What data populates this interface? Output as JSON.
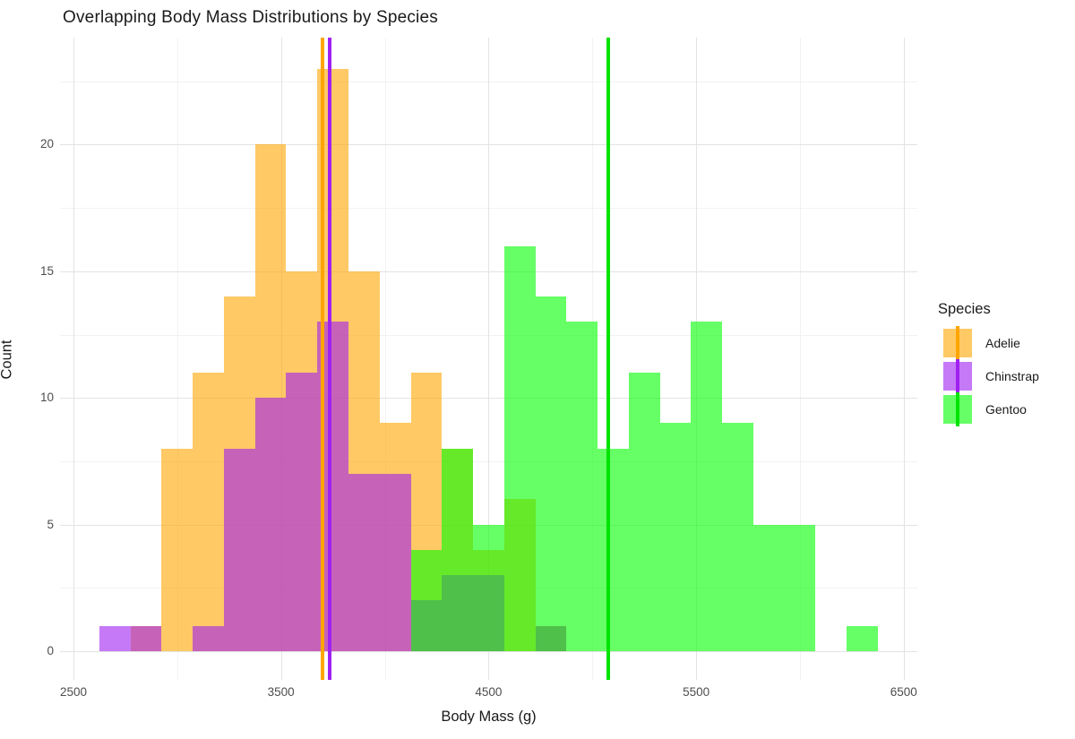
{
  "title": "Overlapping Body Mass Distributions by Species",
  "axes": {
    "x": {
      "label": "Body Mass (g)"
    },
    "y": {
      "label": "Count"
    }
  },
  "legend": {
    "title": "Species",
    "items": [
      {
        "label": "Adelie"
      },
      {
        "label": "Chinstrap"
      },
      {
        "label": "Gentoo"
      }
    ]
  },
  "chart_data": {
    "type": "histogram-overlaid",
    "title": "Overlapping Body Mass Distributions by Species",
    "xlabel": "Body Mass (g)",
    "ylabel": "Count",
    "bin_width": 150,
    "bin_centers": [
      2700,
      2850,
      3000,
      3150,
      3300,
      3450,
      3600,
      3750,
      3900,
      4050,
      4200,
      4350,
      4500,
      4650,
      4800,
      4950,
      5100,
      5250,
      5400,
      5550,
      5700,
      5850,
      6000,
      6150,
      6300
    ],
    "x_major_ticks": [
      2500,
      3500,
      4500,
      5500,
      6500
    ],
    "x_minor_gridlines": [
      3000,
      4000,
      5000,
      6000
    ],
    "y_major_ticks": [
      0,
      5,
      10,
      15,
      20
    ],
    "y_minor_gridlines": [
      2.5,
      7.5,
      12.5,
      17.5,
      22.5
    ],
    "xlim": [
      2435,
      6566
    ],
    "ylim": [
      -1.15,
      24.2
    ],
    "grid": "on",
    "legend_position": "right",
    "fill_alpha": 0.6,
    "series": [
      {
        "name": "Adelie",
        "fill": "rgba(255,165,0,0.6)",
        "line_color": "#FFA500",
        "mean": 3700.7,
        "counts": [
          0,
          1,
          8,
          11,
          14,
          20,
          15,
          23,
          15,
          9,
          11,
          8,
          4,
          6,
          1,
          0,
          0,
          0,
          0,
          0,
          0,
          0,
          0,
          0,
          0
        ]
      },
      {
        "name": "Chinstrap",
        "fill": "rgba(160,32,240,0.6)",
        "line_color": "#A020F0",
        "mean": 3733.1,
        "counts": [
          1,
          1,
          0,
          1,
          8,
          10,
          11,
          13,
          7,
          7,
          2,
          3,
          3,
          0,
          1,
          0,
          0,
          0,
          0,
          0,
          0,
          0,
          0,
          0,
          0
        ]
      },
      {
        "name": "Gentoo",
        "fill": "rgba(0,255,0,0.6)",
        "line_color": "#00E400",
        "mean": 5076.0,
        "counts": [
          0,
          0,
          0,
          0,
          0,
          0,
          0,
          0,
          0,
          0,
          4,
          8,
          5,
          16,
          14,
          13,
          8,
          11,
          9,
          13,
          9,
          5,
          5,
          0,
          1
        ]
      }
    ]
  }
}
